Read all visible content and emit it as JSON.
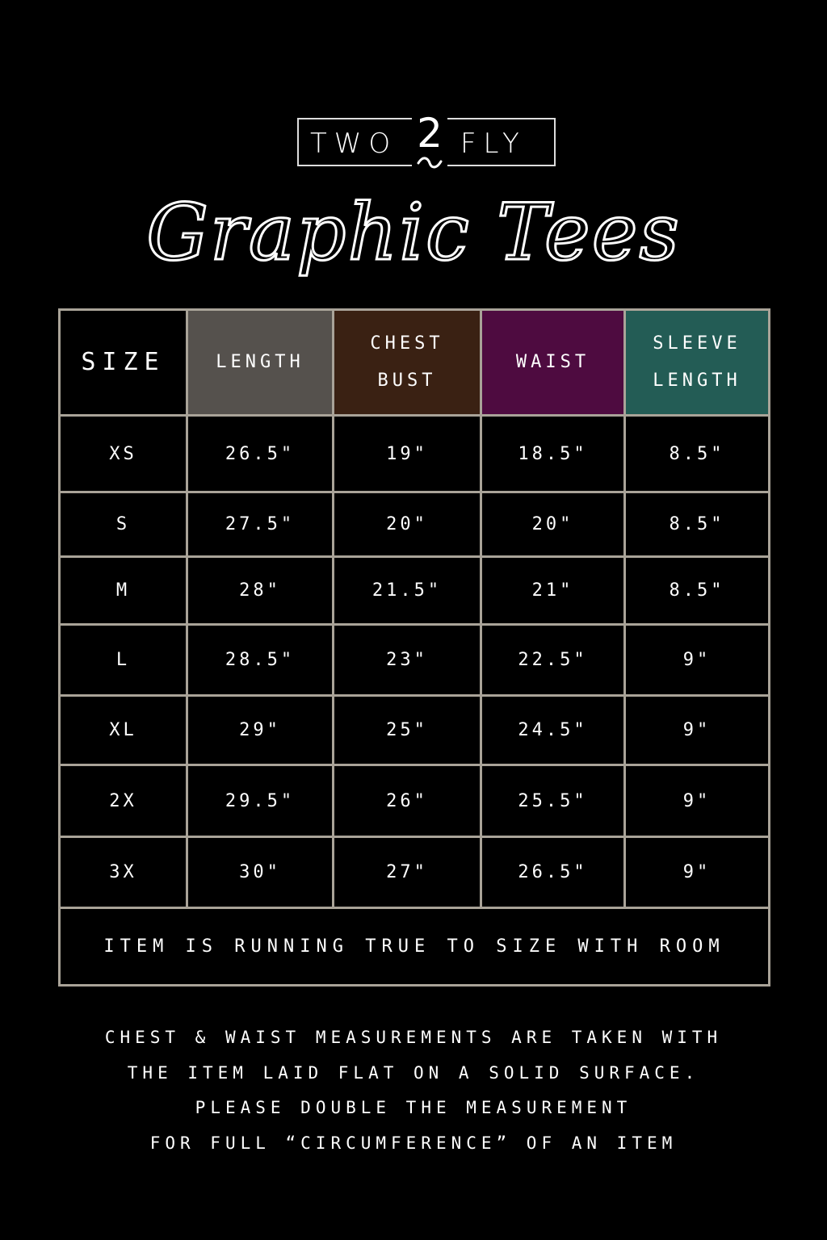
{
  "brand": {
    "left": "TWO",
    "middle": "2",
    "right": "FLY"
  },
  "title": "Graphic Tees",
  "header_colors": {
    "size": "#000000",
    "length": "#55514d",
    "chest": "#3a2113",
    "waist": "#4e0b40",
    "sleeve": "#235c55",
    "border": "#a9a398"
  },
  "table": {
    "headers": [
      {
        "line1": "SIZE",
        "line2": ""
      },
      {
        "line1": "LENGTH",
        "line2": ""
      },
      {
        "line1": "CHEST",
        "line2": "BUST"
      },
      {
        "line1": "WAIST",
        "line2": ""
      },
      {
        "line1": "SLEEVE",
        "line2": "LENGTH"
      }
    ],
    "rows": [
      [
        "XS",
        "26.5\"",
        "19\"",
        "18.5\"",
        "8.5\""
      ],
      [
        "S",
        "27.5\"",
        "20\"",
        "20\"",
        "8.5\""
      ],
      [
        "M",
        "28\"",
        "21.5\"",
        "21\"",
        "8.5\""
      ],
      [
        "L",
        "28.5\"",
        "23\"",
        "22.5\"",
        "9\""
      ],
      [
        "XL",
        "29\"",
        "25\"",
        "24.5\"",
        "9\""
      ],
      [
        "2X",
        "29.5\"",
        "26\"",
        "25.5\"",
        "9\""
      ],
      [
        "3X",
        "30\"",
        "27\"",
        "26.5\"",
        "9\""
      ]
    ],
    "footer": "ITEM IS RUNNING TRUE TO SIZE WITH ROOM"
  },
  "notes": [
    "CHEST & WAIST MEASUREMENTS ARE TAKEN WITH",
    "THE ITEM LAID FLAT ON A SOLID SURFACE.",
    "PLEASE DOUBLE THE MEASUREMENT",
    "FOR FULL “CIRCUMFERENCE” OF AN ITEM"
  ]
}
